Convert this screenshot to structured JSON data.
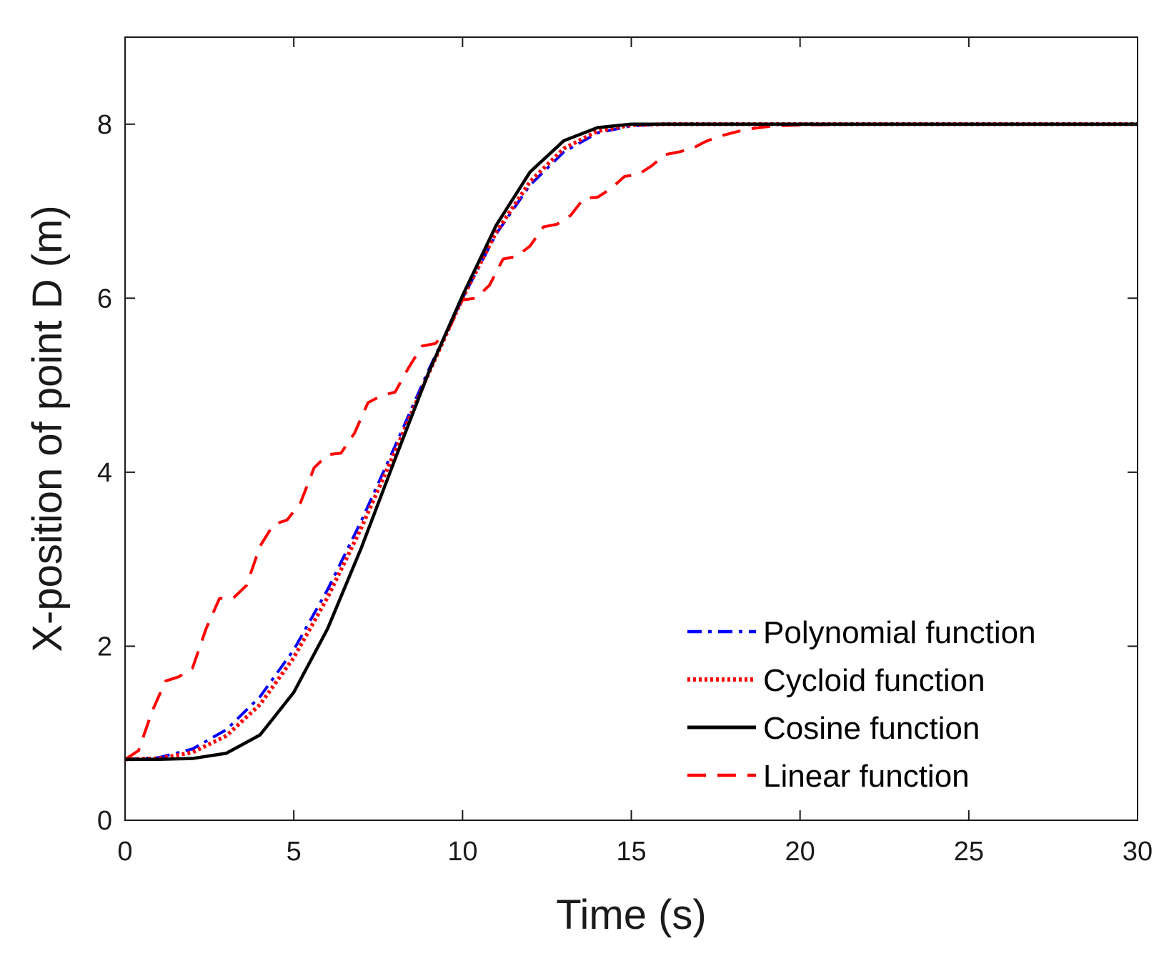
{
  "chart_data": {
    "type": "line",
    "title": "",
    "xlabel": "Time (s)",
    "ylabel": "X-position of point D (m)",
    "xlim": [
      0,
      30
    ],
    "ylim": [
      0,
      9
    ],
    "xticks": [
      0,
      5,
      10,
      15,
      20,
      25,
      30
    ],
    "xtick_labels": [
      "0",
      "5",
      "10",
      "15",
      "20",
      "25",
      "30"
    ],
    "yticks": [
      0,
      2,
      4,
      6,
      8
    ],
    "ytick_labels": [
      "0",
      "2",
      "4",
      "6",
      "8"
    ],
    "grid": false,
    "legend_position": "bottom-right",
    "series": [
      {
        "name": "Polynomial function",
        "color": "#0000ff",
        "style": "dashdot",
        "x": [
          0,
          1,
          2,
          3,
          4,
          5,
          6,
          7,
          8,
          9,
          10,
          11,
          12,
          13,
          14,
          15,
          16,
          17,
          18,
          20,
          25,
          30
        ],
        "y": [
          0.7,
          0.72,
          0.82,
          1.04,
          1.42,
          1.96,
          2.65,
          3.44,
          4.3,
          5.18,
          6.0,
          6.74,
          7.3,
          7.68,
          7.9,
          7.98,
          8.0,
          8.0,
          8.0,
          8.0,
          8.0,
          8.0
        ]
      },
      {
        "name": "Cycloid function",
        "color": "#ff0000",
        "style": "dotted",
        "x": [
          0,
          1,
          2,
          3,
          4,
          5,
          6,
          7,
          8,
          9,
          10,
          11,
          12,
          13,
          14,
          15,
          16,
          17,
          18,
          20,
          25,
          30
        ],
        "y": [
          0.7,
          0.71,
          0.78,
          0.97,
          1.33,
          1.87,
          2.56,
          3.36,
          4.24,
          5.14,
          6.0,
          6.76,
          7.34,
          7.72,
          7.92,
          7.99,
          8.0,
          8.0,
          8.0,
          8.0,
          8.0,
          8.0
        ]
      },
      {
        "name": "Cosine function",
        "color": "#000000",
        "style": "solid",
        "x": [
          0,
          1,
          2,
          3,
          4,
          5,
          6,
          7,
          8,
          9,
          10,
          11,
          12,
          13,
          14,
          15,
          16,
          17,
          18,
          20,
          25,
          30
        ],
        "y": [
          0.7,
          0.7,
          0.71,
          0.77,
          0.98,
          1.47,
          2.2,
          3.13,
          4.15,
          5.15,
          6.03,
          6.84,
          7.45,
          7.81,
          7.96,
          8.0,
          8.0,
          8.0,
          8.0,
          8.0,
          8.0,
          8.0
        ]
      },
      {
        "name": "Linear function",
        "color": "#ff0000",
        "style": "dashed",
        "x": [
          0,
          0.4,
          0.8,
          1.2,
          1.6,
          2.0,
          2.4,
          2.8,
          3.2,
          3.6,
          4.0,
          4.4,
          4.8,
          5.2,
          5.6,
          6.0,
          6.4,
          6.8,
          7.2,
          7.6,
          8.0,
          8.4,
          8.8,
          9.2,
          9.6,
          10.0,
          10.4,
          10.8,
          11.2,
          11.6,
          12.0,
          12.4,
          12.8,
          13.2,
          13.6,
          14.0,
          14.4,
          14.8,
          15.2,
          15.6,
          16.0,
          16.4,
          16.8,
          17.2,
          17.6,
          18.0,
          18.4,
          18.8,
          19.2,
          20.0,
          22.0,
          25.0,
          30.0
        ],
        "y": [
          0.7,
          0.8,
          1.25,
          1.6,
          1.65,
          1.75,
          2.2,
          2.55,
          2.55,
          2.7,
          3.15,
          3.4,
          3.45,
          3.65,
          4.05,
          4.2,
          4.22,
          4.45,
          4.8,
          4.88,
          4.92,
          5.2,
          5.45,
          5.48,
          5.65,
          5.98,
          6.0,
          6.15,
          6.45,
          6.48,
          6.6,
          6.82,
          6.85,
          6.95,
          7.15,
          7.16,
          7.26,
          7.4,
          7.42,
          7.52,
          7.65,
          7.68,
          7.72,
          7.8,
          7.86,
          7.9,
          7.94,
          7.96,
          7.98,
          7.99,
          8.0,
          8.0,
          8.0
        ]
      }
    ]
  }
}
